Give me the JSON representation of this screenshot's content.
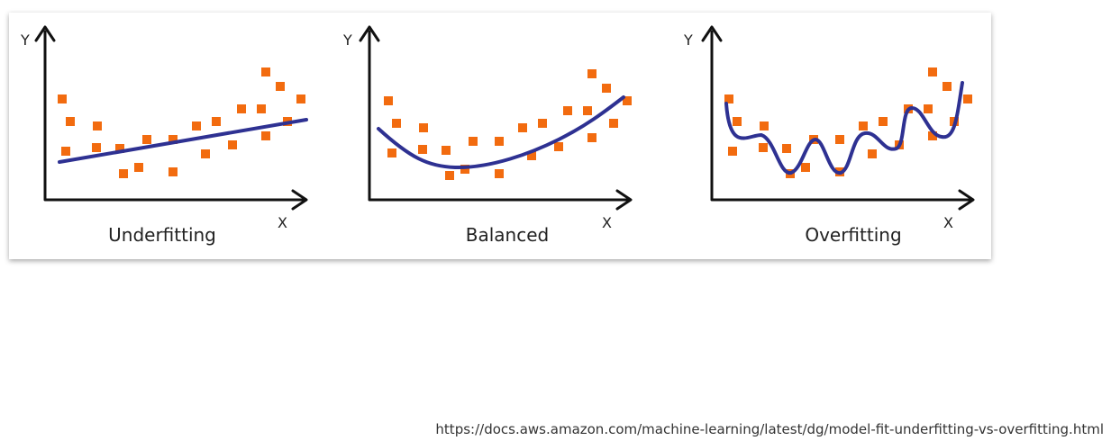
{
  "panels": [
    {
      "y_label": "Y",
      "x_label": "X",
      "title": "Underfitting"
    },
    {
      "y_label": "Y",
      "x_label": "X",
      "title": "Balanced"
    },
    {
      "y_label": "Y",
      "x_label": "X",
      "title": "Overfitting"
    }
  ],
  "source": "https://docs.aws.amazon.com/machine-learning/latest/dg/model-fit-underfitting-vs-overfitting.html"
}
